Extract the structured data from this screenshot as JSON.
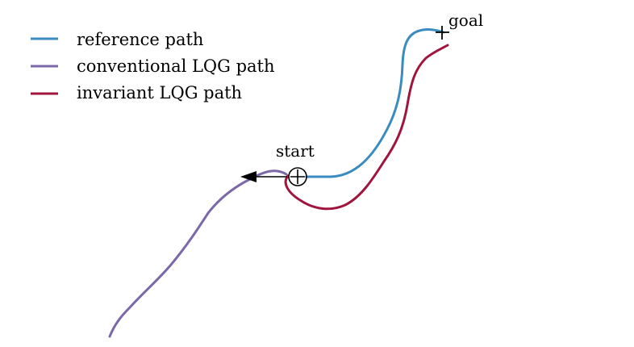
{
  "colors": {
    "reference": "#3a8bbf",
    "conventional": "#7b68a8",
    "invariant": "#a0153e",
    "marker": "#000000"
  },
  "legend": {
    "items": [
      {
        "key": "reference",
        "label": "reference path"
      },
      {
        "key": "conventional",
        "label": "conventional LQG path"
      },
      {
        "key": "invariant",
        "label": "invariant LQG path"
      }
    ]
  },
  "annotations": {
    "start_label": "start",
    "goal_label": "goal"
  }
}
